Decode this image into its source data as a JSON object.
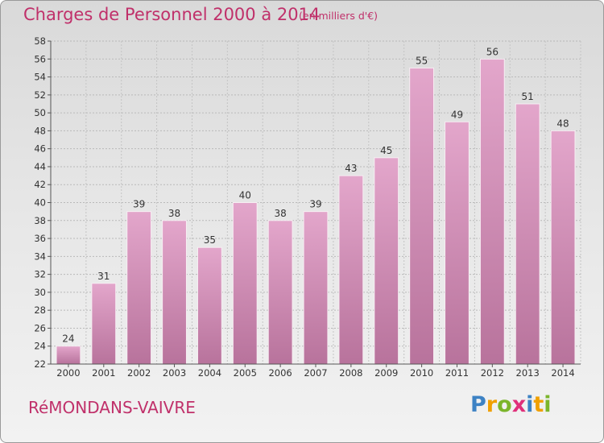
{
  "header": {
    "title": "Charges de Personnel 2000 à 2014",
    "subtitle": "(en milliers d'€)"
  },
  "footer": {
    "commune": "RéMONDANS-VAIVRE",
    "logo_text": "Proxiti"
  },
  "colors": {
    "bar_top": "#e3a6cb",
    "bar_bottom": "#b8739c",
    "title": "#c0306a"
  },
  "chart_data": {
    "type": "bar",
    "title": "Charges de Personnel 2000 à 2014",
    "subtitle": "(en milliers d'€)",
    "categories": [
      "2000",
      "2001",
      "2002",
      "2003",
      "2004",
      "2005",
      "2006",
      "2007",
      "2008",
      "2009",
      "2010",
      "2011",
      "2012",
      "2013",
      "2014"
    ],
    "values": [
      24,
      31,
      39,
      38,
      35,
      40,
      38,
      39,
      43,
      45,
      55,
      49,
      56,
      51,
      48
    ],
    "ylim": [
      22,
      58
    ],
    "yticks": [
      22,
      24,
      26,
      28,
      30,
      32,
      34,
      36,
      38,
      40,
      42,
      44,
      46,
      48,
      50,
      52,
      54,
      56,
      58
    ],
    "grid": true,
    "xlabel": "",
    "ylabel": ""
  }
}
